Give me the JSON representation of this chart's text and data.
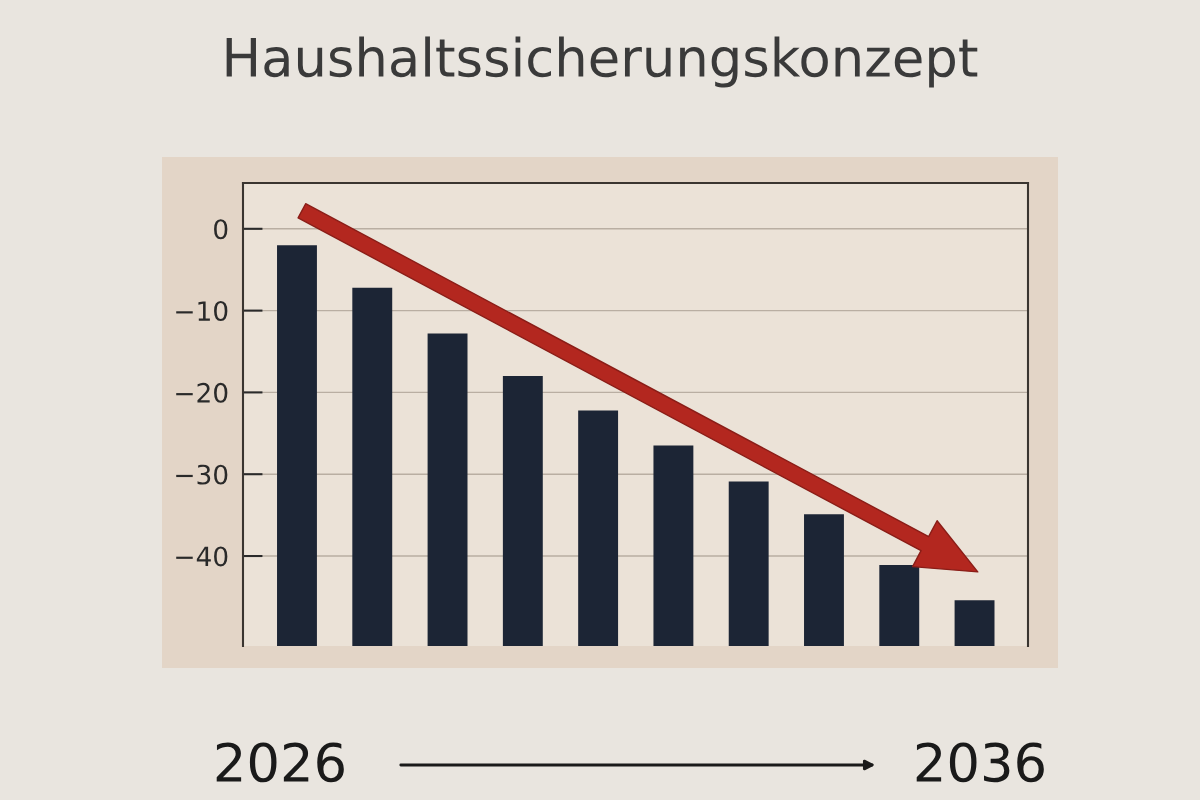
{
  "chart_data": {
    "type": "bar",
    "title": "Haushaltssicherungskonzept",
    "categories": [
      null,
      null,
      null,
      null,
      null,
      null,
      null,
      null,
      null,
      null
    ],
    "base": [
      -51,
      -51,
      -51,
      -51,
      -51,
      -51,
      -51,
      -51,
      -51,
      -51
    ],
    "values": [
      49,
      43.8,
      38.2,
      33,
      28.8,
      24.5,
      20.1,
      16.1,
      9.9,
      5.6
    ],
    "color": "#1c2535",
    "ylim": [
      -51,
      5.6
    ],
    "yticks": [
      {
        "value": 0,
        "label": "0"
      },
      {
        "value": -10,
        "label": "−10"
      },
      {
        "value": -20,
        "label": "−20"
      },
      {
        "value": -30,
        "label": "−30"
      },
      {
        "value": -40,
        "label": "−40"
      }
    ],
    "grid": "y",
    "annotations": [
      "2026",
      "2036"
    ]
  }
}
